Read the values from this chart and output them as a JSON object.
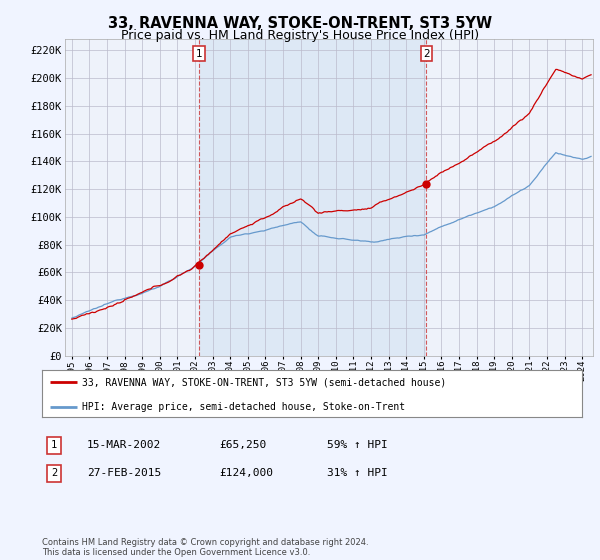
{
  "title": "33, RAVENNA WAY, STOKE-ON-TRENT, ST3 5YW",
  "subtitle": "Price paid vs. HM Land Registry's House Price Index (HPI)",
  "ylabel_ticks": [
    "£0",
    "£20K",
    "£40K",
    "£60K",
    "£80K",
    "£100K",
    "£120K",
    "£140K",
    "£160K",
    "£180K",
    "£200K",
    "£220K"
  ],
  "ytick_values": [
    0,
    20000,
    40000,
    60000,
    80000,
    100000,
    120000,
    140000,
    160000,
    180000,
    200000,
    220000
  ],
  "ylim": [
    0,
    228000
  ],
  "xlim_start": 1994.6,
  "xlim_end": 2024.6,
  "transaction1_year": 2002.21,
  "transaction1_price": 65250,
  "transaction2_year": 2015.15,
  "transaction2_price": 124000,
  "legend_line1": "33, RAVENNA WAY, STOKE-ON-TRENT, ST3 5YW (semi-detached house)",
  "legend_line2": "HPI: Average price, semi-detached house, Stoke-on-Trent",
  "table_row1": [
    "1",
    "15-MAR-2002",
    "£65,250",
    "59% ↑ HPI"
  ],
  "table_row2": [
    "2",
    "27-FEB-2015",
    "£124,000",
    "31% ↑ HPI"
  ],
  "footer": "Contains HM Land Registry data © Crown copyright and database right 2024.\nThis data is licensed under the Open Government Licence v3.0.",
  "line_color_red": "#cc0000",
  "line_color_blue": "#6699cc",
  "shade_color": "#dde8f5",
  "background_color": "#f0f4ff",
  "grid_color": "#cccccc",
  "title_fontsize": 10.5,
  "subtitle_fontsize": 9
}
